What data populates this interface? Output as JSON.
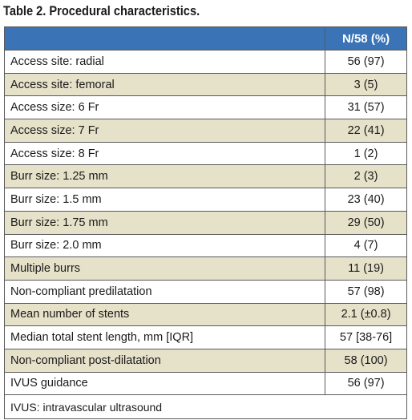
{
  "caption": "Table 2. Procedural characteristics.",
  "table": {
    "header": {
      "label": "",
      "value": "N/58 (%)"
    },
    "rows": [
      {
        "label": "Access site: radial",
        "value": "56 (97)"
      },
      {
        "label": "Access site: femoral",
        "value": "3 (5)"
      },
      {
        "label": "Access size: 6 Fr",
        "value": "31 (57)"
      },
      {
        "label": "Access size: 7 Fr",
        "value": "22 (41)"
      },
      {
        "label": "Access size: 8 Fr",
        "value": "1 (2)"
      },
      {
        "label": "Burr size: 1.25 mm",
        "value": "2 (3)"
      },
      {
        "label": "Burr size: 1.5 mm",
        "value": "23 (40)"
      },
      {
        "label": "Burr size: 1.75 mm",
        "value": "29 (50)"
      },
      {
        "label": "Burr size: 2.0 mm",
        "value": "4 (7)"
      },
      {
        "label": "Multiple burrs",
        "value": "11 (19)"
      },
      {
        "label": "Non-compliant predilatation",
        "value": "57 (98)"
      },
      {
        "label": "Mean number of stents",
        "value": "2.1 (±0.8)"
      },
      {
        "label": "Median total stent length, mm [IQR]",
        "value": "57 [38-76]"
      },
      {
        "label": "Non-compliant post-dilatation",
        "value": "58 (100)"
      },
      {
        "label": "IVUS guidance",
        "value": "56 (97)"
      }
    ],
    "footnote": "IVUS: intravascular ultrasound"
  },
  "colors": {
    "header_bg": "#3a74b7",
    "stripe_bg": "#e6e1c9",
    "border": "#5a5a5a"
  }
}
